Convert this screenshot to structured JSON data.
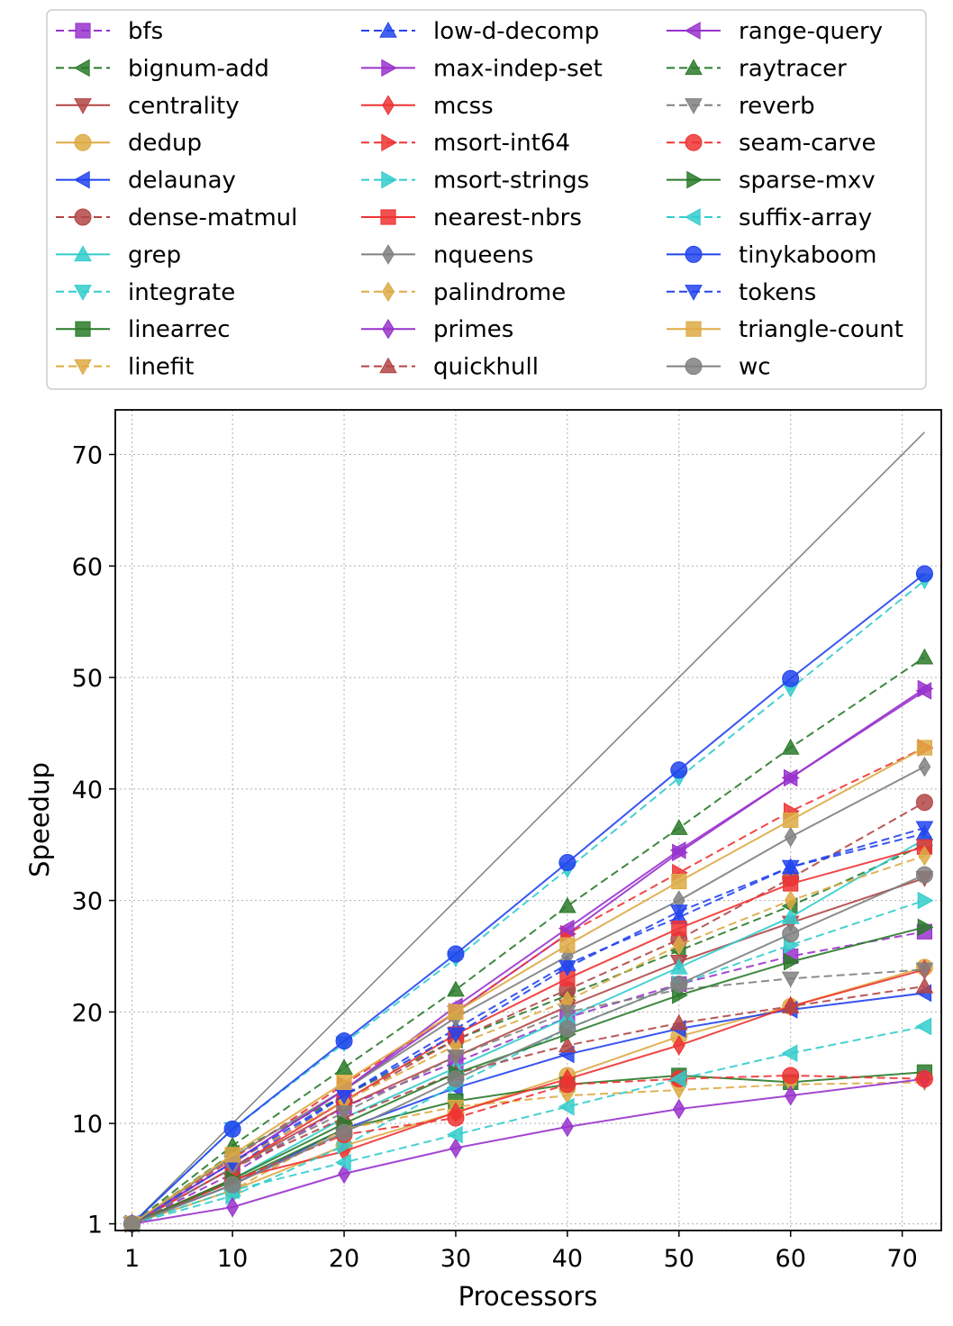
{
  "chart_data": {
    "type": "line",
    "title": "",
    "xlabel": "Processors",
    "ylabel": "Speedup",
    "xlim": [
      -0.5,
      73.5
    ],
    "ylim": [
      0.4,
      74
    ],
    "xticks": [
      1,
      10,
      20,
      30,
      40,
      50,
      60,
      70
    ],
    "yticks": [
      1,
      10,
      20,
      30,
      40,
      50,
      60,
      70
    ],
    "grid": true,
    "legend_position": "top",
    "reference_line": {
      "from": [
        1,
        1
      ],
      "to": [
        72,
        72
      ],
      "color": "#808080"
    },
    "x": [
      1,
      10,
      20,
      30,
      40,
      50,
      60,
      72
    ],
    "series": [
      {
        "name": "bfs",
        "color": "#9933cc",
        "dash": "dashed",
        "marker": "square",
        "values": [
          1,
          5.5,
          11.5,
          15.5,
          19.5,
          22.5,
          25,
          27.2
        ]
      },
      {
        "name": "bignum-add",
        "color": "#2a7a2a",
        "dash": "dashed",
        "marker": "triangle-left",
        "values": [
          1,
          7.3,
          12.5,
          17.5,
          21.5,
          25.5,
          29.5,
          35
        ]
      },
      {
        "name": "centrality",
        "color": "#b34545",
        "dash": "solid",
        "marker": "triangle-down",
        "values": [
          1,
          6,
          11.5,
          16,
          20.5,
          24.5,
          28,
          32
        ]
      },
      {
        "name": "dedup",
        "color": "#ddaa44",
        "dash": "solid",
        "marker": "circle",
        "values": [
          1,
          4,
          8,
          11,
          14.3,
          17.8,
          20.5,
          24
        ]
      },
      {
        "name": "delaunay",
        "color": "#2244ee",
        "dash": "solid",
        "marker": "triangle-left",
        "values": [
          1,
          4.5,
          9.5,
          13.2,
          16.2,
          18.5,
          20.2,
          21.7
        ]
      },
      {
        "name": "dense-matmul",
        "color": "#b34545",
        "dash": "dashed",
        "marker": "circle",
        "values": [
          1,
          6.5,
          12,
          17.5,
          22,
          26.5,
          32,
          38.8
        ]
      },
      {
        "name": "grep",
        "color": "#33cccc",
        "dash": "solid",
        "marker": "triangle-up",
        "values": [
          1,
          5,
          10.5,
          15,
          19.5,
          24,
          28.5,
          35.5
        ]
      },
      {
        "name": "integrate",
        "color": "#33cccc",
        "dash": "dashed",
        "marker": "triangle-down",
        "values": [
          1,
          9.5,
          17.2,
          24.8,
          32.8,
          41,
          49,
          58.7
        ]
      },
      {
        "name": "linearrec",
        "color": "#2a7a2a",
        "dash": "solid",
        "marker": "square",
        "values": [
          1,
          4.8,
          9.5,
          12,
          13.5,
          14.3,
          13.7,
          14.6
        ]
      },
      {
        "name": "linefit",
        "color": "#ddaa44",
        "dash": "dashed",
        "marker": "triangle-down",
        "values": [
          1,
          4,
          9.5,
          11.5,
          12.5,
          13,
          13.5,
          13.7
        ]
      },
      {
        "name": "low-d-decomp",
        "color": "#2244ee",
        "dash": "dashed",
        "marker": "triangle-up",
        "values": [
          1,
          6,
          12.5,
          18.5,
          24.3,
          28.5,
          33,
          36
        ]
      },
      {
        "name": "max-indep-set",
        "color": "#9933cc",
        "dash": "solid",
        "marker": "triangle-right",
        "values": [
          1,
          6.5,
          13,
          20,
          27,
          34.3,
          41,
          49
        ]
      },
      {
        "name": "mcss",
        "color": "#ee3333",
        "dash": "solid",
        "marker": "diamond",
        "values": [
          1,
          5,
          7.5,
          11,
          14,
          17,
          20.5,
          23.8
        ]
      },
      {
        "name": "msort-int64",
        "color": "#ee3333",
        "dash": "dashed",
        "marker": "triangle-right",
        "values": [
          1,
          6.8,
          13.5,
          20,
          27,
          32.5,
          38,
          43.7
        ]
      },
      {
        "name": "msort-strings",
        "color": "#33cccc",
        "dash": "dashed",
        "marker": "triangle-right",
        "values": [
          1,
          3.5,
          8,
          13.5,
          18.5,
          22.5,
          26,
          30
        ]
      },
      {
        "name": "nearest-nbrs",
        "color": "#ee3333",
        "dash": "solid",
        "marker": "square",
        "values": [
          1,
          6,
          12,
          18,
          23,
          27.5,
          31.5,
          34.8
        ]
      },
      {
        "name": "nqueens",
        "color": "#808080",
        "dash": "solid",
        "marker": "diamond",
        "values": [
          1,
          7,
          13,
          19.5,
          25,
          30,
          35.7,
          42
        ]
      },
      {
        "name": "palindrome",
        "color": "#ddaa44",
        "dash": "dashed",
        "marker": "diamond",
        "values": [
          1,
          6.5,
          12,
          17,
          21,
          26,
          30,
          34
        ]
      },
      {
        "name": "primes",
        "color": "#9933cc",
        "dash": "solid",
        "marker": "diamond",
        "values": [
          1,
          2.5,
          5.5,
          7.8,
          9.7,
          11.3,
          12.5,
          14
        ]
      },
      {
        "name": "quickhull",
        "color": "#b34545",
        "dash": "dashed",
        "marker": "triangle-up",
        "values": [
          1,
          6,
          10.5,
          14.5,
          17,
          19,
          20.5,
          22.3
        ]
      },
      {
        "name": "range-query",
        "color": "#9933cc",
        "dash": "solid",
        "marker": "triangle-left",
        "values": [
          1,
          6.5,
          13,
          20.5,
          27.5,
          34.5,
          41,
          48.8
        ]
      },
      {
        "name": "raytracer",
        "color": "#2a7a2a",
        "dash": "dashed",
        "marker": "triangle-up",
        "values": [
          1,
          8,
          15,
          22,
          29.5,
          36.5,
          43.7,
          51.8
        ]
      },
      {
        "name": "reverb",
        "color": "#808080",
        "dash": "dashed",
        "marker": "triangle-down",
        "values": [
          1,
          6,
          11,
          16,
          20,
          22,
          23,
          23.8
        ]
      },
      {
        "name": "seam-carve",
        "color": "#ee3333",
        "dash": "dashed",
        "marker": "circle",
        "values": [
          1,
          4.8,
          9,
          10.5,
          13.5,
          14,
          14.3,
          14
        ]
      },
      {
        "name": "sparse-mxv",
        "color": "#2a7a2a",
        "dash": "solid",
        "marker": "triangle-right",
        "values": [
          1,
          5,
          10,
          14.5,
          18,
          21.5,
          24.5,
          27.6
        ]
      },
      {
        "name": "suffix-array",
        "color": "#33cccc",
        "dash": "dashed",
        "marker": "triangle-left",
        "values": [
          1,
          4,
          6.5,
          9,
          11.5,
          14,
          16.3,
          18.7
        ]
      },
      {
        "name": "tinykaboom",
        "color": "#2244ee",
        "dash": "solid",
        "marker": "circle",
        "values": [
          1,
          9.5,
          17.4,
          25.2,
          33.4,
          41.7,
          49.9,
          59.3
        ]
      },
      {
        "name": "tokens",
        "color": "#2244ee",
        "dash": "dashed",
        "marker": "triangle-down",
        "values": [
          1,
          6.5,
          12.5,
          18,
          24,
          29,
          33,
          36.5
        ]
      },
      {
        "name": "triangle-count",
        "color": "#ddaa44",
        "dash": "solid",
        "marker": "square",
        "values": [
          1,
          7.2,
          13.7,
          20,
          26,
          31.7,
          37.2,
          43.7
        ]
      },
      {
        "name": "wc",
        "color": "#808080",
        "dash": "solid",
        "marker": "circle",
        "values": [
          1,
          4.5,
          9.2,
          14,
          18.5,
          22.5,
          27,
          32.3
        ]
      }
    ]
  }
}
